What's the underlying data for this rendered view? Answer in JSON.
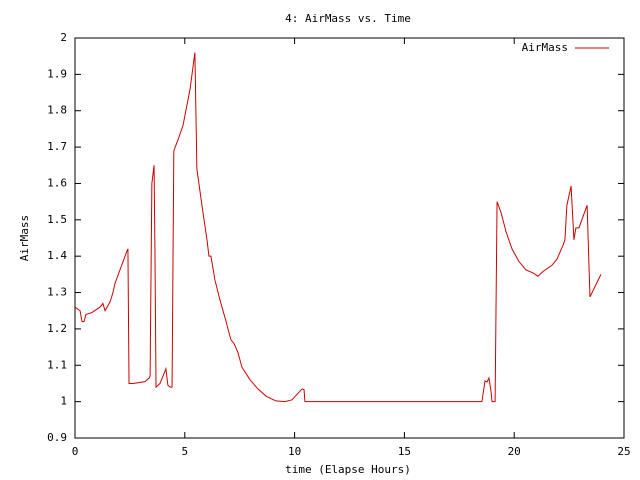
{
  "chart_data": {
    "type": "line",
    "title": "4: AirMass vs. Time",
    "x_label": "time (Elapse Hours)",
    "y_label": "AirMass",
    "x": [
      0,
      0.23,
      0.32,
      0.41,
      0.5,
      0.77,
      1.14,
      1.27,
      1.37,
      1.6,
      1.73,
      1.82,
      2.37,
      2.41,
      2.46,
      2.64,
      3.19,
      3.37,
      3.42,
      3.5,
      3.6,
      3.64,
      3.69,
      3.87,
      4.14,
      4.23,
      4.33,
      4.42,
      4.5,
      4.69,
      4.92,
      5.24,
      5.46,
      5.55,
      5.78,
      6.01,
      6.1,
      6.19,
      6.37,
      6.6,
      6.88,
      7.1,
      7.24,
      7.42,
      7.6,
      7.97,
      8.33,
      8.7,
      9.15,
      9.56,
      9.88,
      10.34,
      10.43,
      10.47,
      18.53,
      18.67,
      18.76,
      18.85,
      18.94,
      18.99,
      19.13,
      19.22,
      19.4,
      19.63,
      19.9,
      20.22,
      20.54,
      20.86,
      21.08,
      21.31,
      21.72,
      21.95,
      22.22,
      22.31,
      22.4,
      22.59,
      22.72,
      22.81,
      22.95,
      23.32,
      23.45,
      23.95
    ],
    "series": [
      {
        "name": "AirMass",
        "color": "#cc0000",
        "values": [
          1.26,
          1.25,
          1.22,
          1.22,
          1.24,
          1.245,
          1.26,
          1.27,
          1.25,
          1.275,
          1.3,
          1.325,
          1.415,
          1.42,
          1.05,
          1.05,
          1.055,
          1.065,
          1.07,
          1.6,
          1.65,
          1.42,
          1.04,
          1.05,
          1.09,
          1.045,
          1.04,
          1.04,
          1.69,
          1.72,
          1.76,
          1.86,
          1.96,
          1.64,
          1.54,
          1.445,
          1.4,
          1.4,
          1.335,
          1.28,
          1.22,
          1.17,
          1.16,
          1.135,
          1.095,
          1.06,
          1.035,
          1.015,
          1.002,
          1.0,
          1.005,
          1.035,
          1.033,
          1.0,
          1.0,
          1.057,
          1.054,
          1.065,
          1.03,
          1.0,
          1.0,
          1.55,
          1.52,
          1.467,
          1.42,
          1.385,
          1.362,
          1.354,
          1.345,
          1.358,
          1.375,
          1.392,
          1.43,
          1.445,
          1.54,
          1.593,
          1.445,
          1.478,
          1.478,
          1.54,
          1.288,
          1.35
        ]
      }
    ],
    "xlim": [
      0,
      25
    ],
    "ylim": [
      0.9,
      2
    ],
    "xticks": [
      0,
      5,
      10,
      15,
      20,
      25
    ],
    "yticks": [
      0.9,
      1,
      1.1,
      1.2,
      1.3,
      1.4,
      1.5,
      1.6,
      1.7,
      1.8,
      1.9,
      2
    ],
    "grid": false,
    "legend": "top-right"
  }
}
